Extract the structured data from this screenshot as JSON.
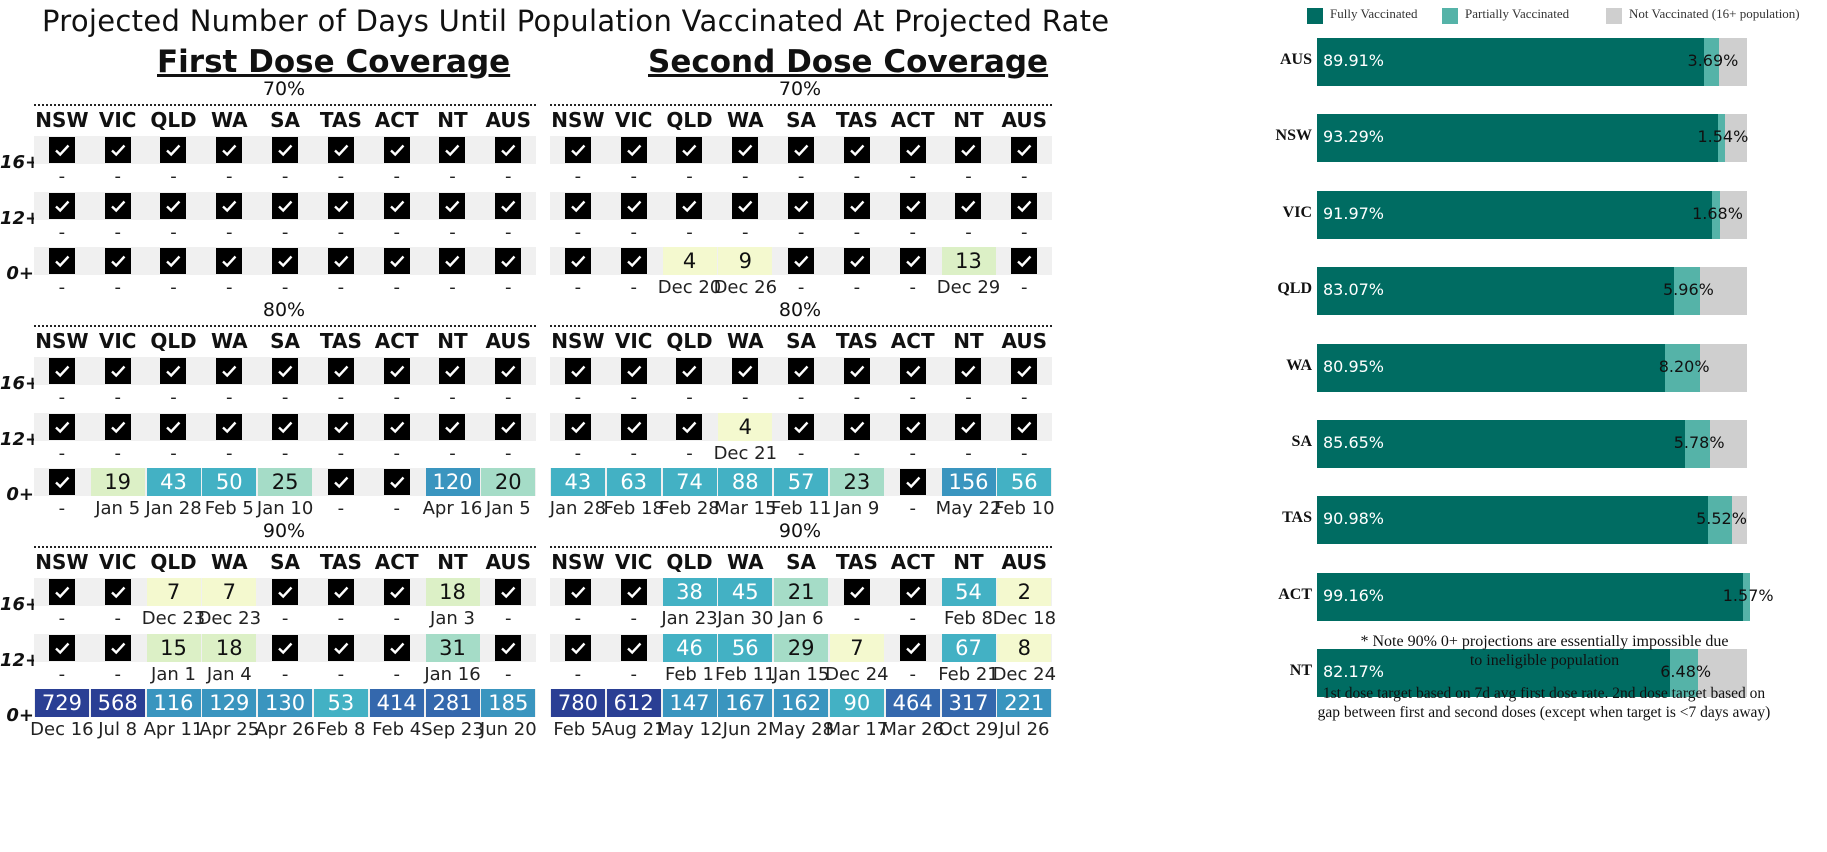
{
  "title": "Projected Number of Days Until Population Vaccinated At Projected Rate",
  "states": [
    "NSW",
    "VIC",
    "QLD",
    "WA",
    "SA",
    "TAS",
    "ACT",
    "NT",
    "AUS"
  ],
  "age_groups": [
    "16+",
    "12+",
    "0+"
  ],
  "targets": [
    "70%",
    "80%",
    "90%"
  ],
  "colors": {
    "check": "#000000",
    "scale_1": "#f4f9cf",
    "scale_2": "#dcf0c6",
    "scale_3": "#a5dcc7",
    "scale_4": "#43b1c4",
    "scale_5": "#3a95bf",
    "scale_6": "#3468ad",
    "scale_7": "#2a3f94",
    "fully": "#006c62",
    "partially": "#55b3a8",
    "not": "#cfcfcf"
  },
  "chart_data": [
    {
      "type": "table",
      "title": "First Dose Coverage",
      "note": "cell value: 'check' = target reached; number = days until target; date shown below",
      "blocks": [
        {
          "target": "70%",
          "rows": [
            {
              "age": "16+",
              "values": [
                "check",
                "check",
                "check",
                "check",
                "check",
                "check",
                "check",
                "check",
                "check"
              ],
              "dates": [
                "-",
                "-",
                "-",
                "-",
                "-",
                "-",
                "-",
                "-",
                "-"
              ]
            },
            {
              "age": "12+",
              "values": [
                "check",
                "check",
                "check",
                "check",
                "check",
                "check",
                "check",
                "check",
                "check"
              ],
              "dates": [
                "-",
                "-",
                "-",
                "-",
                "-",
                "-",
                "-",
                "-",
                "-"
              ]
            },
            {
              "age": "0+",
              "values": [
                "check",
                "check",
                "check",
                "check",
                "check",
                "check",
                "check",
                "check",
                "check"
              ],
              "dates": [
                "-",
                "-",
                "-",
                "-",
                "-",
                "-",
                "-",
                "-",
                "-"
              ]
            }
          ]
        },
        {
          "target": "80%",
          "rows": [
            {
              "age": "16+",
              "values": [
                "check",
                "check",
                "check",
                "check",
                "check",
                "check",
                "check",
                "check",
                "check"
              ],
              "dates": [
                "-",
                "-",
                "-",
                "-",
                "-",
                "-",
                "-",
                "-",
                "-"
              ]
            },
            {
              "age": "12+",
              "values": [
                "check",
                "check",
                "check",
                "check",
                "check",
                "check",
                "check",
                "check",
                "check"
              ],
              "dates": [
                "-",
                "-",
                "-",
                "-",
                "-",
                "-",
                "-",
                "-",
                "-"
              ]
            },
            {
              "age": "0+",
              "values": [
                "check",
                19,
                43,
                50,
                25,
                "check",
                "check",
                120,
                20
              ],
              "dates": [
                "-",
                "Jan 5",
                "Jan 28",
                "Feb 5",
                "Jan 10",
                "-",
                "-",
                "Apr 16",
                "Jan 5"
              ]
            }
          ]
        },
        {
          "target": "90%",
          "rows": [
            {
              "age": "16+",
              "values": [
                "check",
                "check",
                7,
                7,
                "check",
                "check",
                "check",
                18,
                "check"
              ],
              "dates": [
                "-",
                "-",
                "Dec 23",
                "Dec 23",
                "-",
                "-",
                "-",
                "Jan 3",
                "-"
              ]
            },
            {
              "age": "12+",
              "values": [
                "check",
                "check",
                15,
                18,
                "check",
                "check",
                "check",
                31,
                "check"
              ],
              "dates": [
                "-",
                "-",
                "Jan 1",
                "Jan 4",
                "-",
                "-",
                "-",
                "Jan 16",
                "-"
              ]
            },
            {
              "age": "0+",
              "values": [
                729,
                568,
                116,
                129,
                130,
                53,
                414,
                281,
                185
              ],
              "dates": [
                "Dec 16",
                "Jul 8",
                "Apr 11",
                "Apr 25",
                "Apr 26",
                "Feb 8",
                "Feb 4",
                "Sep 23",
                "Jun 20"
              ]
            }
          ]
        }
      ]
    },
    {
      "type": "table",
      "title": "Second Dose Coverage",
      "blocks": [
        {
          "target": "70%",
          "rows": [
            {
              "age": "16+",
              "values": [
                "check",
                "check",
                "check",
                "check",
                "check",
                "check",
                "check",
                "check",
                "check"
              ],
              "dates": [
                "-",
                "-",
                "-",
                "-",
                "-",
                "-",
                "-",
                "-",
                "-"
              ]
            },
            {
              "age": "12+",
              "values": [
                "check",
                "check",
                "check",
                "check",
                "check",
                "check",
                "check",
                "check",
                "check"
              ],
              "dates": [
                "-",
                "-",
                "-",
                "-",
                "-",
                "-",
                "-",
                "-",
                "-"
              ]
            },
            {
              "age": "0+",
              "values": [
                "check",
                "check",
                4,
                9,
                "check",
                "check",
                "check",
                13,
                "check"
              ],
              "dates": [
                "-",
                "-",
                "Dec 20",
                "Dec 26",
                "-",
                "-",
                "-",
                "Dec 29",
                "-"
              ]
            }
          ]
        },
        {
          "target": "80%",
          "rows": [
            {
              "age": "16+",
              "values": [
                "check",
                "check",
                "check",
                "check",
                "check",
                "check",
                "check",
                "check",
                "check"
              ],
              "dates": [
                "-",
                "-",
                "-",
                "-",
                "-",
                "-",
                "-",
                "-",
                "-"
              ]
            },
            {
              "age": "12+",
              "values": [
                "check",
                "check",
                "check",
                4,
                "check",
                "check",
                "check",
                "check",
                "check"
              ],
              "dates": [
                "-",
                "-",
                "-",
                "Dec 21",
                "-",
                "-",
                "-",
                "-",
                "-"
              ]
            },
            {
              "age": "0+",
              "values": [
                43,
                63,
                74,
                88,
                57,
                23,
                "check",
                156,
                56
              ],
              "dates": [
                "Jan 28",
                "Feb 18",
                "Feb 28",
                "Mar 15",
                "Feb 11",
                "Jan 9",
                "-",
                "May 22",
                "Feb 10"
              ]
            }
          ]
        },
        {
          "target": "90%",
          "rows": [
            {
              "age": "16+",
              "values": [
                "check",
                "check",
                38,
                45,
                21,
                "check",
                "check",
                54,
                2
              ],
              "dates": [
                "-",
                "-",
                "Jan 23",
                "Jan 30",
                "Jan 6",
                "-",
                "-",
                "Feb 8",
                "Dec 18"
              ]
            },
            {
              "age": "12+",
              "values": [
                "check",
                "check",
                46,
                56,
                29,
                7,
                "check",
                67,
                8
              ],
              "dates": [
                "-",
                "-",
                "Feb 1",
                "Feb 11",
                "Jan 15",
                "Dec 24",
                "-",
                "Feb 21",
                "Dec 24"
              ]
            },
            {
              "age": "0+",
              "values": [
                780,
                612,
                147,
                167,
                162,
                90,
                464,
                317,
                221
              ],
              "dates": [
                "Feb 5",
                "Aug 21",
                "May 12",
                "Jun 2",
                "May 28",
                "Mar 17",
                "Mar 26",
                "Oct 29",
                "Jul 26"
              ]
            }
          ]
        }
      ]
    },
    {
      "type": "bar",
      "orientation": "horizontal",
      "stacked": true,
      "legend": [
        "Fully Vaccinated",
        "Partially Vaccinated",
        "Not Vaccinated (16+ population)"
      ],
      "legend_placement": "top",
      "categories": [
        "AUS",
        "NSW",
        "VIC",
        "QLD",
        "WA",
        "SA",
        "TAS",
        "ACT",
        "NT"
      ],
      "series": [
        {
          "name": "Fully Vaccinated",
          "values": [
            89.91,
            93.29,
            91.97,
            83.07,
            80.95,
            85.65,
            90.98,
            99.16,
            82.17
          ]
        },
        {
          "name": "Partially Vaccinated",
          "values": [
            3.69,
            1.54,
            1.68,
            5.96,
            8.2,
            5.78,
            5.52,
            1.57,
            6.48
          ]
        }
      ],
      "labels_fully": [
        "89.91%",
        "93.29%",
        "91.97%",
        "83.07%",
        "80.95%",
        "85.65%",
        "90.98%",
        "99.16%",
        "82.17%"
      ],
      "labels_partial": [
        "3.69%",
        "1.54%",
        "1.68%",
        "5.96%",
        "8.20%",
        "5.78%",
        "5.52%",
        "1.57%",
        "6.48%"
      ],
      "xlim": [
        0,
        100
      ]
    }
  ],
  "notes": {
    "note1_line1": "* Note 90% 0+ projections are essentially impossible due",
    "note1_line2": "to ineligible population",
    "note2_line1": "1st dose target based on 7d avg first dose rate. 2nd dose target based on",
    "note2_line2": "gap between first and second doses (except when target is <7 days away)"
  }
}
